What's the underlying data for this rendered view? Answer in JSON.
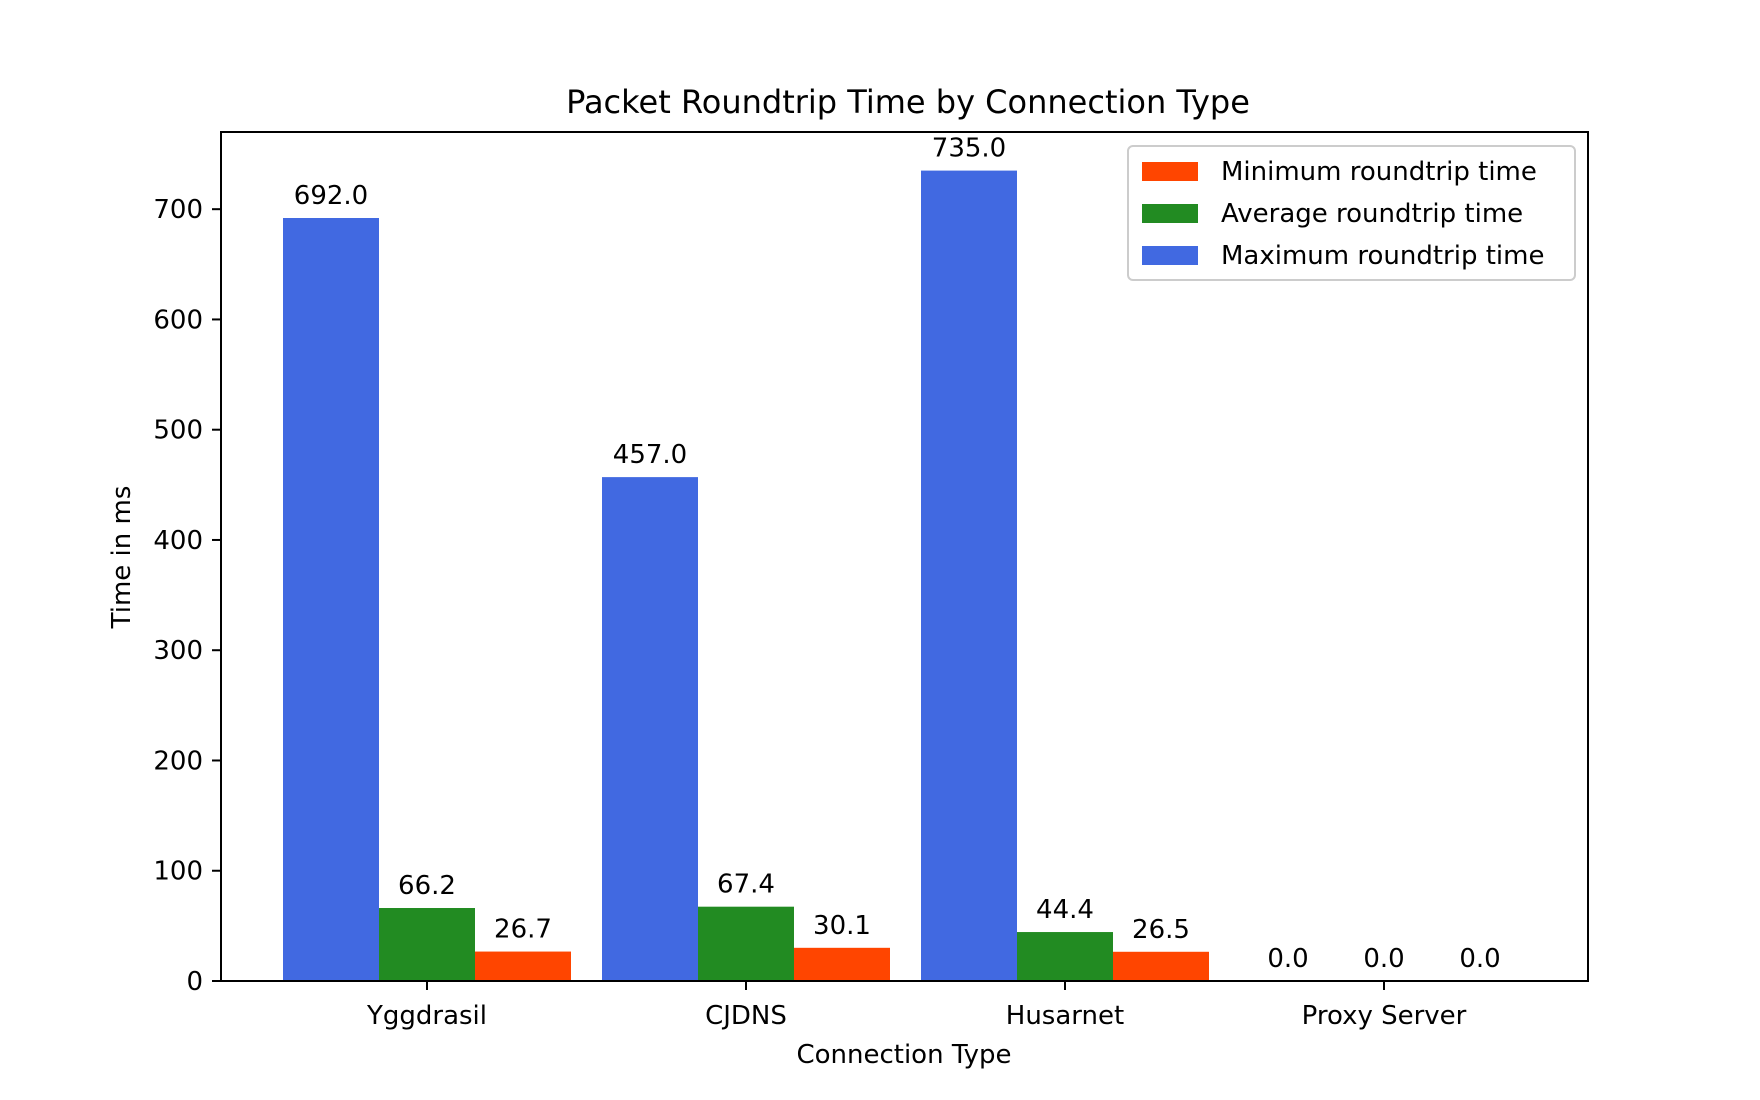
{
  "chart_data": {
    "type": "bar",
    "title": "Packet Roundtrip Time by Connection Type",
    "xlabel": "Connection Type",
    "ylabel": "Time in ms",
    "categories": [
      "Yggdrasil",
      "CJDNS",
      "Husarnet",
      "Proxy Server"
    ],
    "series": [
      {
        "name": "Maximum roundtrip time",
        "color": "#4169e1",
        "values": [
          692.0,
          457.0,
          735.0,
          0.0
        ],
        "labels": [
          "692.0",
          "457.0",
          "735.0",
          "0.0"
        ]
      },
      {
        "name": "Average roundtrip time",
        "color": "#228b22",
        "values": [
          66.2,
          67.4,
          44.4,
          0.0
        ],
        "labels": [
          "66.2",
          "67.4",
          "44.4",
          "0.0"
        ]
      },
      {
        "name": "Minimum roundtrip time",
        "color": "#ff4500",
        "values": [
          26.7,
          30.1,
          26.5,
          0.0
        ],
        "labels": [
          "26.7",
          "30.1",
          "26.5",
          "0.0"
        ]
      }
    ],
    "legend_order": [
      "Minimum roundtrip time",
      "Average roundtrip time",
      "Maximum roundtrip time"
    ],
    "legend_position": "top-right",
    "ylim": [
      0,
      770
    ],
    "yticks": [
      0,
      100,
      200,
      300,
      400,
      500,
      600,
      700
    ],
    "ytick_labels": [
      "0",
      "100",
      "200",
      "300",
      "400",
      "500",
      "600",
      "700"
    ],
    "grid": false
  }
}
